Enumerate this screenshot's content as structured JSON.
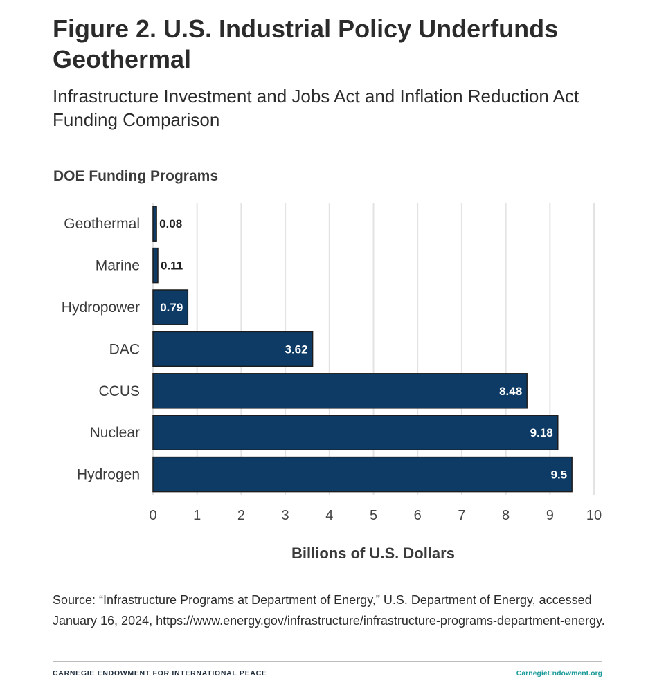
{
  "header": {
    "title": "Figure 2. U.S. Industrial Policy Underfunds Geothermal",
    "subtitle": "Infrastructure Investment and Jobs Act and Inflation Reduction Act Funding Comparison"
  },
  "chart_data": {
    "type": "bar",
    "orientation": "horizontal",
    "categories": [
      "Geothermal",
      "Marine",
      "Hydropower",
      "DAC",
      "CCUS",
      "Nuclear",
      "Hydrogen"
    ],
    "values": [
      0.08,
      0.11,
      0.79,
      3.62,
      8.48,
      9.18,
      9.5
    ],
    "value_labels": [
      "0.08",
      "0.11",
      "0.79",
      "3.62",
      "8.48",
      "9.18",
      "9.5"
    ],
    "ylabel": "DOE Funding Programs",
    "xlabel": "Billions of U.S. Dollars",
    "xlim": [
      0,
      10
    ],
    "xticks": [
      0,
      1,
      2,
      3,
      4,
      5,
      6,
      7,
      8,
      9,
      10
    ],
    "xtick_labels": [
      "0",
      "1",
      "2",
      "3",
      "4",
      "5",
      "6",
      "7",
      "8",
      "9",
      "10"
    ],
    "grid": true,
    "bar_color": "#0d3b66",
    "bar_outline_color": "#1c1c1c",
    "label_inside_color": "#ffffff",
    "label_outside_color": "#222222"
  },
  "footer": {
    "source": "Source: “Infrastructure Programs at Department of Energy,” U.S. Department of Energy, accessed January 16, 2024, https://www.energy.gov/infrastructure/infrastructure-programs-department-energy.",
    "org": "CARNEGIE ENDOWMENT FOR INTERNATIONAL PEACE",
    "url": "CarnegieEndowment.org"
  }
}
